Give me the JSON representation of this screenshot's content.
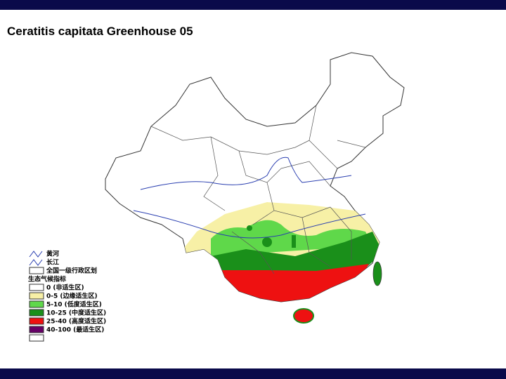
{
  "header": {
    "title": "Ceratitis capitata Greenhouse 05"
  },
  "legend": {
    "rivers": [
      "黄河",
      "长江"
    ],
    "boundary": "全国一级行政区划",
    "heading": "生态气候指标",
    "classes": [
      "0 (非适生区)",
      "0-5 (边缘适生区)",
      "5-10 (低度适生区)",
      "10-25 (中度适生区)",
      "25-40 (高度适生区)",
      "40-100 (最适生区)"
    ]
  }
}
